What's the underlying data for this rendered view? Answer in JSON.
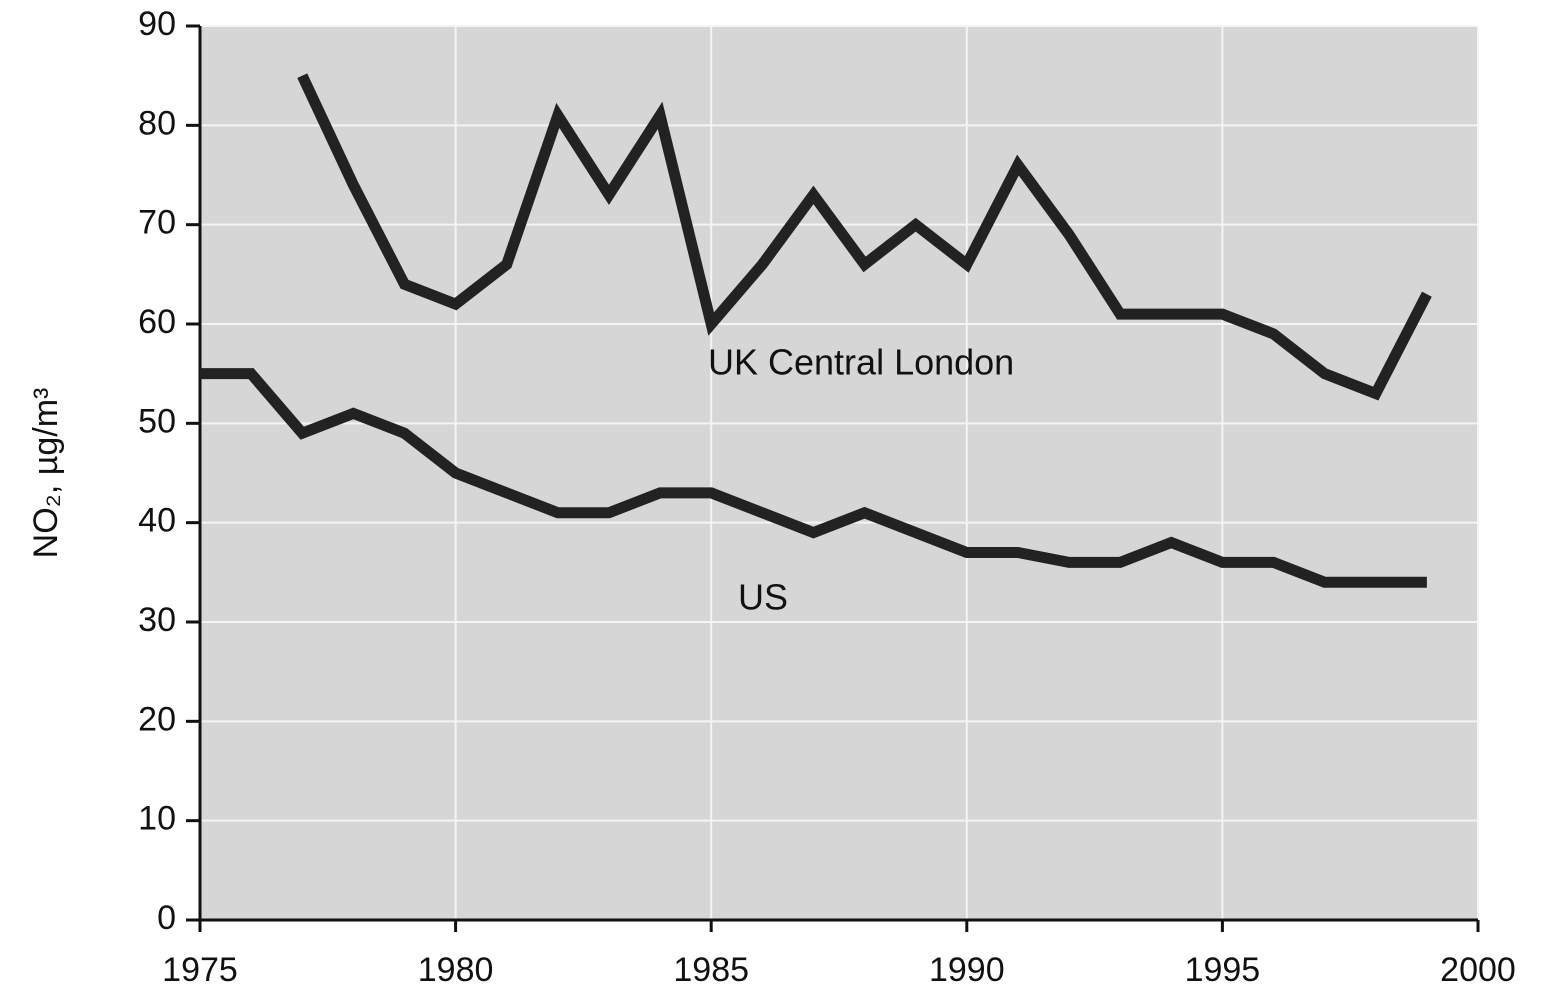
{
  "chart_data": {
    "type": "line",
    "y_label": "NO₂, µg/m³",
    "x": [
      1975,
      1976,
      1977,
      1978,
      1979,
      1980,
      1981,
      1982,
      1983,
      1984,
      1985,
      1986,
      1987,
      1988,
      1989,
      1990,
      1991,
      1992,
      1993,
      1994,
      1995,
      1996,
      1997,
      1998,
      1999
    ],
    "series": [
      {
        "name": "UK Central London",
        "color": "#222222",
        "values": [
          null,
          null,
          85,
          74,
          64,
          62,
          66,
          81,
          73,
          81,
          60,
          66,
          73,
          66,
          70,
          66,
          76,
          69,
          61,
          61,
          61,
          59,
          55,
          53,
          63
        ]
      },
      {
        "name": "US",
        "color": "#222222",
        "values": [
          55,
          55,
          49,
          51,
          49,
          45,
          43,
          41,
          41,
          43,
          43,
          41,
          39,
          41,
          39,
          37,
          37,
          36,
          36,
          38,
          36,
          36,
          34,
          34,
          34
        ]
      }
    ],
    "xlim": [
      1975,
      2000
    ],
    "xticks": [
      1975,
      1980,
      1985,
      1990,
      1995,
      2000
    ],
    "ylim": [
      0,
      90
    ],
    "yticks": [
      0,
      10,
      20,
      30,
      40,
      50,
      60,
      70,
      80,
      90
    ],
    "grid": true
  }
}
